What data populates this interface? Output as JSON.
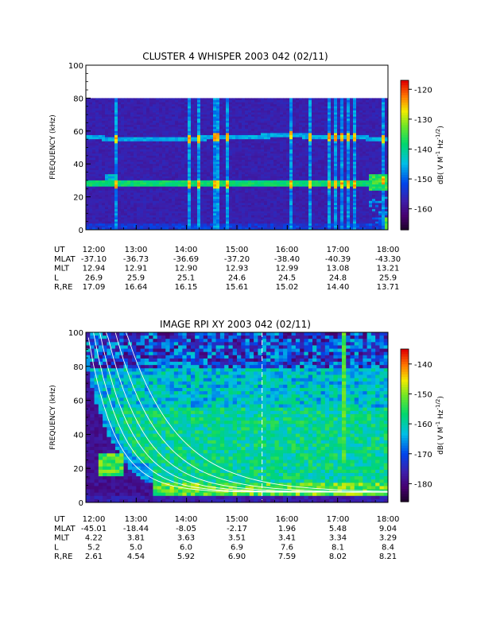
{
  "chart_data": [
    {
      "type": "heatmap",
      "title": "CLUSTER 4 WHISPER 2003 042 (02/11)",
      "ylabel": "FREQUENCY (kHz)",
      "ylim": [
        0,
        100
      ],
      "yticks": [
        "0",
        "20",
        "40",
        "60",
        "80",
        "100"
      ],
      "xlim": [
        "12:00",
        "18:00"
      ],
      "data_freq_range": [
        0,
        80
      ],
      "colorbar": {
        "label": "dB( V M⁻¹ Hz⁻¹ᐟ²)",
        "label_main": "dB( V M",
        "label_sup1": "-1",
        "label_mid": " Hz",
        "label_sup2": "-1/2",
        "label_end": ")",
        "range": [
          -167,
          -117
        ],
        "ticks": [
          "-120",
          "-130",
          "-140",
          "-150",
          "-160"
        ],
        "tick_values": [
          -120,
          -130,
          -140,
          -150,
          -160
        ]
      },
      "emission_bands": [
        {
          "freq_khz": 28,
          "level_db": -137
        },
        {
          "freq_khz": 56,
          "level_db": -145
        }
      ],
      "spikes_hours": [
        12.6,
        14.05,
        14.18,
        14.55,
        14.62,
        14.78,
        16.05,
        16.4,
        16.82,
        16.92,
        17.05,
        17.18,
        17.3,
        17.85
      ],
      "ephemeris": {
        "labels": [
          "UT",
          "MLAT",
          "MLT",
          "L",
          "R,RE"
        ],
        "columns": [
          {
            "UT": "12:00",
            "MLAT": "-37.10",
            "MLT": "12.94",
            "L": "26.9",
            "R,RE": "17.09"
          },
          {
            "UT": "13:00",
            "MLAT": "-36.73",
            "MLT": "12.91",
            "L": "25.9",
            "R,RE": "16.64"
          },
          {
            "UT": "14:00",
            "MLAT": "-36.69",
            "MLT": "12.90",
            "L": "25.1",
            "R,RE": "16.15"
          },
          {
            "UT": "15:00",
            "MLAT": "-37.20",
            "MLT": "12.93",
            "L": "24.6",
            "R,RE": "15.61"
          },
          {
            "UT": "16:00",
            "MLAT": "-38.40",
            "MLT": "12.99",
            "L": "24.5",
            "R,RE": "15.02"
          },
          {
            "UT": "17:00",
            "MLAT": "-40.39",
            "MLT": "13.08",
            "L": "24.8",
            "R,RE": "14.40"
          },
          {
            "UT": "18:00",
            "MLAT": "-43.30",
            "MLT": "13.21",
            "L": "25.9",
            "R,RE": "13.71"
          }
        ]
      }
    },
    {
      "type": "heatmap",
      "title": "IMAGE RPI XY 2003 042 (02/11)",
      "ylabel": "FREQUENCY (kHz)",
      "ylim": [
        0,
        100
      ],
      "yticks": [
        "0",
        "20",
        "40",
        "60",
        "80",
        "100"
      ],
      "xlim": [
        "12:00",
        "18:00"
      ],
      "colorbar": {
        "label_main": "dB( V M",
        "label_sup1": "-1",
        "label_mid": " Hz",
        "label_sup2": "-1/2",
        "label_end": ")",
        "range": [
          -186,
          -135
        ],
        "ticks": [
          "-140",
          "-150",
          "-160",
          "-170",
          "-180"
        ],
        "tick_values": [
          -140,
          -150,
          -160,
          -170,
          -180
        ]
      },
      "dashed_line_hour": 15.5,
      "ephemeris": {
        "labels": [
          "UT",
          "MLAT",
          "MLT",
          "L",
          "R,RE"
        ],
        "columns": [
          {
            "UT": "12:00",
            "MLAT": "-45.01",
            "MLT": "4.22",
            "L": "5.2",
            "R,RE": "2.61"
          },
          {
            "UT": "13:00",
            "MLAT": "-18.44",
            "MLT": "3.81",
            "L": "5.0",
            "R,RE": "4.54"
          },
          {
            "UT": "14:00",
            "MLAT": "-8.05",
            "MLT": "3.63",
            "L": "6.0",
            "R,RE": "5.92"
          },
          {
            "UT": "15:00",
            "MLAT": "-2.17",
            "MLT": "3.51",
            "L": "6.9",
            "R,RE": "6.90"
          },
          {
            "UT": "16:00",
            "MLAT": "1.96",
            "MLT": "3.41",
            "L": "7.6",
            "R,RE": "7.59"
          },
          {
            "UT": "17:00",
            "MLAT": "5.48",
            "MLT": "3.34",
            "L": "8.1",
            "R,RE": "8.02"
          },
          {
            "UT": "18:00",
            "MLAT": "9.04",
            "MLT": "3.29",
            "L": "8.4",
            "R,RE": "8.21"
          }
        ]
      }
    }
  ]
}
